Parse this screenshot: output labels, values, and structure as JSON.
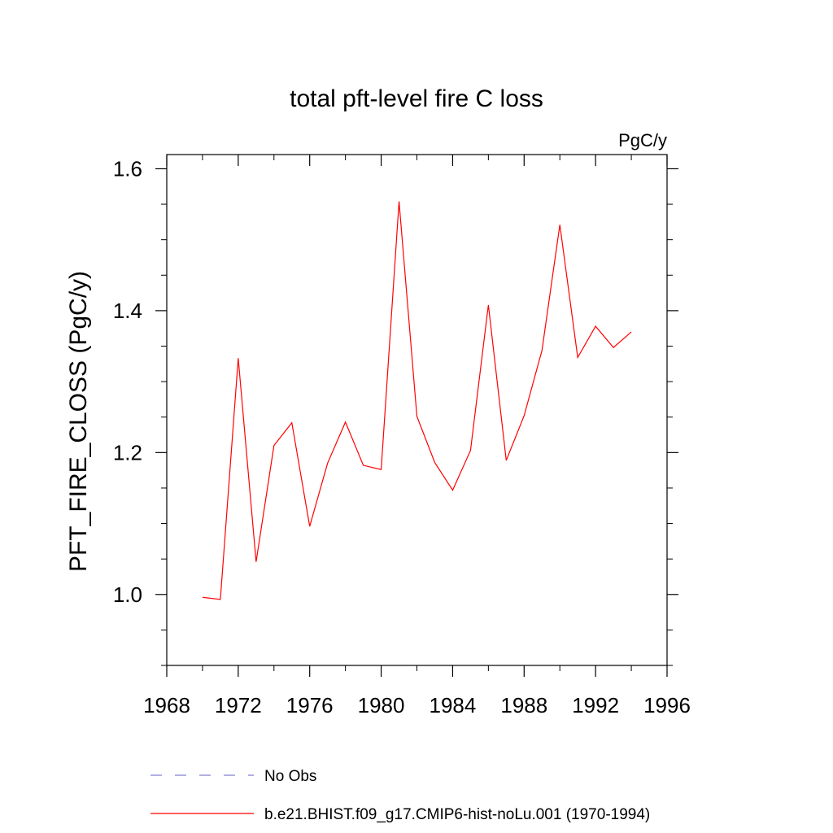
{
  "chart_data": {
    "type": "line",
    "title": "total pft-level fire C loss",
    "units_label": "PgC/y",
    "xlabel": "",
    "ylabel": "PFT_FIRE_CLOSS  (PgC/y)",
    "xlim": [
      1968,
      1996
    ],
    "ylim": [
      0.9,
      1.62
    ],
    "x_ticks": [
      1968,
      1972,
      1976,
      1980,
      1984,
      1988,
      1992,
      1996
    ],
    "x_minor_step": 2,
    "y_ticks": [
      1.0,
      1.2,
      1.4,
      1.6
    ],
    "y_tick_labels": [
      "1.0",
      "1.2",
      "1.4",
      "1.6"
    ],
    "y_minor_step": 0.05,
    "grid": false,
    "legend_position": "bottom",
    "series": [
      {
        "name": "No Obs",
        "color": "#8080d0",
        "style": "dashed",
        "x": [],
        "values": []
      },
      {
        "name": "b.e21.BHIST.f09_g17.CMIP6-hist-noLu.001 (1970-1994)",
        "color": "#ff0000",
        "style": "solid",
        "x": [
          1970,
          1971,
          1972,
          1973,
          1974,
          1975,
          1976,
          1977,
          1978,
          1979,
          1980,
          1981,
          1982,
          1983,
          1984,
          1985,
          1986,
          1987,
          1988,
          1989,
          1990,
          1991,
          1992,
          1993,
          1994
        ],
        "values": [
          0.996,
          0.993,
          1.333,
          1.046,
          1.21,
          1.242,
          1.096,
          1.185,
          1.243,
          1.182,
          1.176,
          1.554,
          1.251,
          1.186,
          1.147,
          1.203,
          1.408,
          1.189,
          1.252,
          1.344,
          1.521,
          1.334,
          1.378,
          1.348,
          1.37
        ]
      }
    ]
  }
}
